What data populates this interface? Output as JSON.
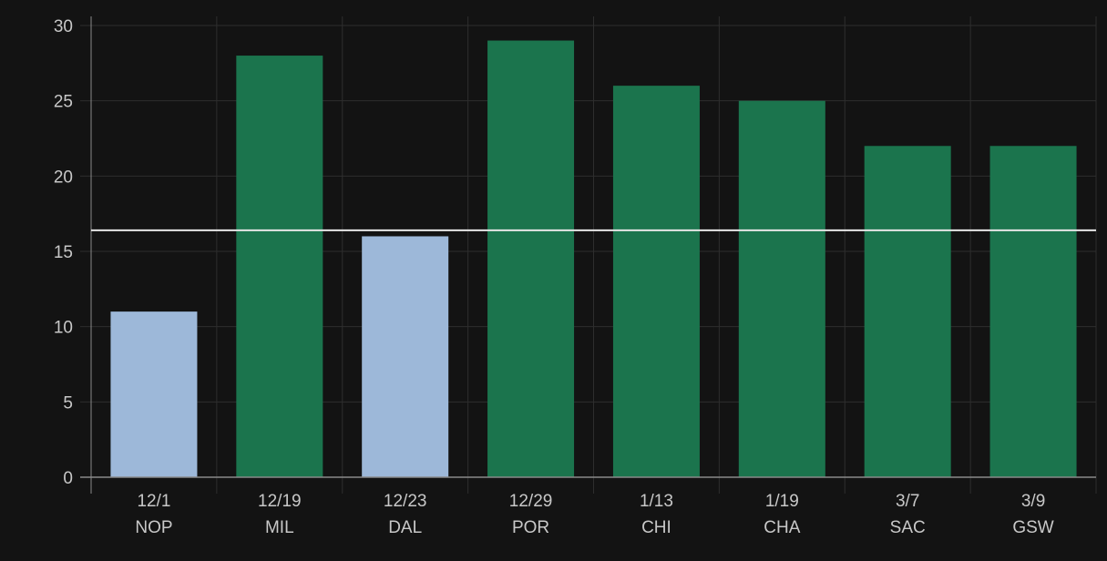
{
  "chart_data": {
    "type": "bar",
    "title": "",
    "xlabel": "",
    "ylabel": "",
    "ylim": [
      0,
      30
    ],
    "yticks": [
      0,
      5,
      10,
      15,
      20,
      25,
      30
    ],
    "grid": true,
    "legend": "none",
    "categories": [
      {
        "date": "12/1",
        "team": "NOP"
      },
      {
        "date": "12/19",
        "team": "MIL"
      },
      {
        "date": "12/23",
        "team": "DAL"
      },
      {
        "date": "12/29",
        "team": "POR"
      },
      {
        "date": "1/13",
        "team": "CHI"
      },
      {
        "date": "1/19",
        "team": "CHA"
      },
      {
        "date": "3/7",
        "team": "SAC"
      },
      {
        "date": "3/9",
        "team": "GSW"
      }
    ],
    "values": [
      11,
      28,
      16,
      29,
      26,
      25,
      22,
      22
    ],
    "reference_line": 16.4,
    "colors": {
      "above_line": "#1b744d",
      "below_line": "#9db8d9",
      "reference_line": "#e6e6e6",
      "grid": "#2e2e2e",
      "axis": "#8a8a8a",
      "background": "#131313"
    }
  }
}
